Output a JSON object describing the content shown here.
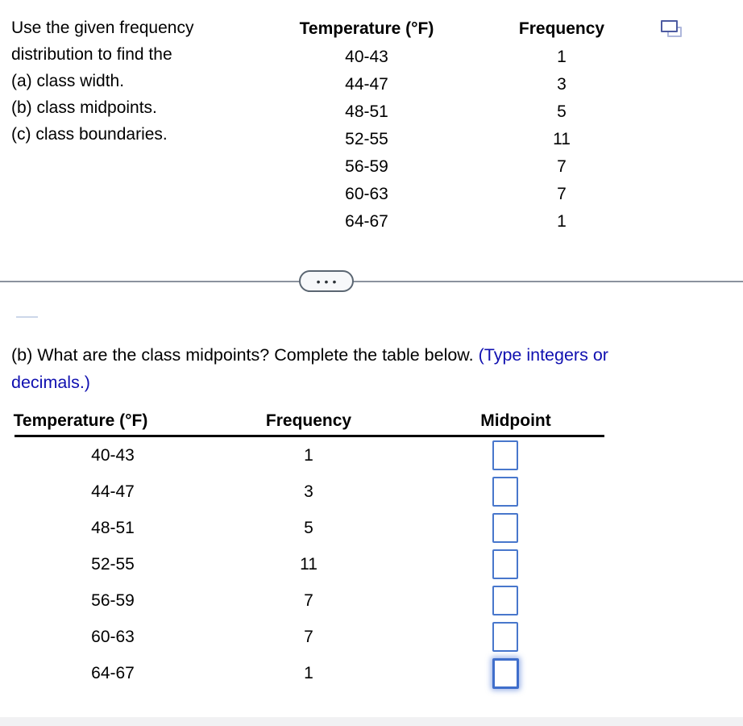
{
  "colors": {
    "hint_text_blue": "#1010b0",
    "input_border_blue": "#4877cc",
    "input_focus_blue": "#3f6ecb",
    "divider_gray": "#8b929e"
  },
  "instructions": {
    "line1": "Use the given frequency",
    "line2": "distribution to find the",
    "line3": "(a) class width.",
    "line4": "(b) class midpoints.",
    "line5": "(c) class boundaries."
  },
  "top_table": {
    "temperature_header": "Temperature (°F)",
    "frequency_header": "Frequency",
    "rows": [
      {
        "range": "40-43",
        "frequency": "1"
      },
      {
        "range": "44-47",
        "frequency": "3"
      },
      {
        "range": "48-51",
        "frequency": "5"
      },
      {
        "range": "52-55",
        "frequency": "11"
      },
      {
        "range": "56-59",
        "frequency": "7"
      },
      {
        "range": "60-63",
        "frequency": "7"
      },
      {
        "range": "64-67",
        "frequency": "1"
      }
    ]
  },
  "divider": {
    "ellipsis": "•••"
  },
  "question_b": {
    "prompt": "(b) What are the class midpoints? Complete the table below. ",
    "hint": "(Type integers or decimals.)"
  },
  "answer_table": {
    "temperature_header": "Temperature (°F)",
    "frequency_header": "Frequency",
    "midpoint_header": "Midpoint",
    "rows": [
      {
        "range": "40-43",
        "frequency": "1",
        "midpoint": ""
      },
      {
        "range": "44-47",
        "frequency": "3",
        "midpoint": ""
      },
      {
        "range": "48-51",
        "frequency": "5",
        "midpoint": ""
      },
      {
        "range": "52-55",
        "frequency": "11",
        "midpoint": ""
      },
      {
        "range": "56-59",
        "frequency": "7",
        "midpoint": ""
      },
      {
        "range": "60-63",
        "frequency": "7",
        "midpoint": ""
      },
      {
        "range": "64-67",
        "frequency": "1",
        "midpoint": ""
      }
    ]
  }
}
